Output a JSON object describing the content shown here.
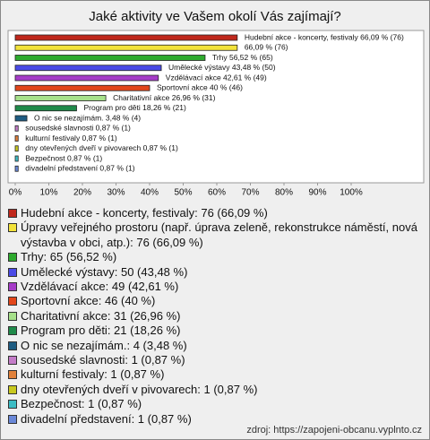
{
  "chart_data": {
    "type": "bar",
    "orientation": "horizontal",
    "title": "Jaké aktivity ve Vašem okolí Vás zajímají?",
    "values": [
      66.09,
      66.09,
      56.52,
      43.48,
      42.61,
      40,
      26.96,
      18.26,
      3.48,
      0.87,
      0.87,
      0.87,
      0.87,
      0.87
    ],
    "value_labels": [
      "Hudební akce - koncerty, festivaly 66,09 % (76)",
      "66,09 % (76)",
      "Trhy 56,52 % (65)",
      "Umělecké výstavy 43,48 % (50)",
      "Vzdělávací akce 42,61 % (49)",
      "Sportovní akce 40 % (46)",
      "Charitativní akce 26,96 % (31)",
      "Program pro děti 18,26 % (21)",
      "O nic se nezajímám. 3,48 % (4)",
      "sousedské slavnosti 0,87 % (1)",
      "kulturní festivaly 0,87 % (1)",
      "dny otevřených dveří v pivovarech 0,87 % (1)",
      "Bezpečnost 0,87 % (1)",
      "divadelní představení 0,87 % (1)"
    ],
    "legend": [
      "Hudební akce - koncerty, festivaly: 76 (66,09 %)",
      "Úpravy veřejného prostoru (např. úprava zeleně, rekonstrukce náměstí, nová výstavba v obci, atp.): 76 (66,09 %)",
      "Trhy: 65 (56,52 %)",
      "Umělecké výstavy: 50 (43,48 %)",
      "Vzdělávací akce: 49 (42,61 %)",
      "Sportovní akce: 46 (40 %)",
      "Charitativní akce: 31 (26,96 %)",
      "Program pro děti: 21 (18,26 %)",
      "O nic se nezajímám.: 4 (3,48 %)",
      "sousedské slavnosti: 1 (0,87 %)",
      "kulturní festivaly: 1 (0,87 %)",
      "dny otevřených dveří v pivovarech: 1 (0,87 %)",
      "Bezpečnost: 1 (0,87 %)",
      "divadelní představení: 1 (0,87 %)"
    ],
    "colors": [
      "#c0281c",
      "#f2e23a",
      "#2eaa2e",
      "#4a4ae6",
      "#a63cc8",
      "#e2461a",
      "#a6e08a",
      "#1f8a4a",
      "#1e5c82",
      "#c47cc8",
      "#e0803a",
      "#c8c81e",
      "#3cbcc4",
      "#6a88d8"
    ],
    "xlim": [
      0,
      100
    ],
    "xticks": [
      {
        "value": 0,
        "label": "0%"
      },
      {
        "value": 10,
        "label": "10%"
      },
      {
        "value": 20,
        "label": "20%"
      },
      {
        "value": 30,
        "label": "30%"
      },
      {
        "value": 40,
        "label": "40%"
      },
      {
        "value": 50,
        "label": "50%"
      },
      {
        "value": 60,
        "label": "60%"
      },
      {
        "value": 70,
        "label": "70%"
      },
      {
        "value": 80,
        "label": "80%"
      },
      {
        "value": 90,
        "label": "90%"
      },
      {
        "value": 100,
        "label": "100%"
      }
    ],
    "source": "zdroj: https://zapojeni-obcanu.vyplnto.cz"
  }
}
